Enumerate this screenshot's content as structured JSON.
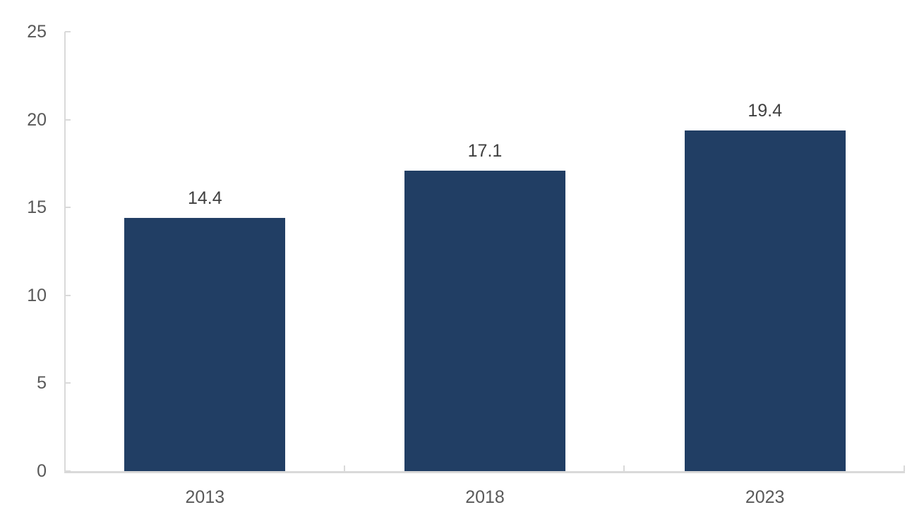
{
  "chart_data": {
    "type": "bar",
    "categories": [
      "2013",
      "2018",
      "2023"
    ],
    "values": [
      14.4,
      17.1,
      19.4
    ],
    "data_labels": [
      "14.4",
      "17.1",
      "19.4"
    ],
    "title": "",
    "xlabel": "",
    "ylabel": "",
    "ylim": [
      0,
      25
    ],
    "yticks": [
      0,
      5,
      10,
      15,
      20,
      25
    ],
    "grid": false,
    "legend": false,
    "colors": {
      "bar": "#213E64",
      "axis_line": "#D9D9D9",
      "tick_label": "#595959",
      "data_label": "#404040",
      "background": "#FFFFFF"
    }
  }
}
